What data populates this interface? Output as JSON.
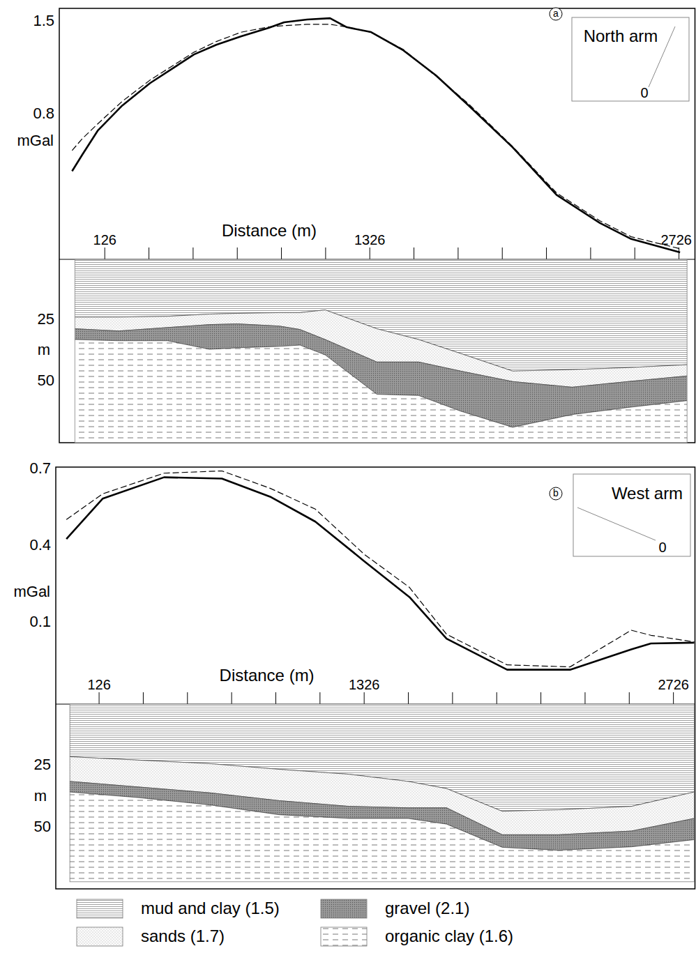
{
  "chart_data": [
    {
      "type": "line",
      "panel": "a",
      "title": "North arm",
      "annotations": [
        "0"
      ],
      "xlabel": "Distance (m)",
      "ylabel": "mGal",
      "x": [
        -22,
        25,
        94,
        205,
        331,
        530,
        631,
        742,
        868,
        938,
        1042,
        1146,
        1222,
        1332,
        1478,
        1626,
        1774,
        1973,
        2172,
        2368,
        2510,
        2731
      ],
      "series": [
        {
          "color": "#000000",
          "line_style": "solid",
          "values": [
            0.374,
            0.5,
            0.679,
            0.868,
            1.037,
            1.253,
            1.326,
            1.389,
            1.453,
            1.495,
            1.516,
            1.526,
            1.458,
            1.421,
            1.284,
            1.095,
            0.868,
            0.553,
            0.195,
            -0.016,
            -0.137,
            -0.237
          ]
        },
        {
          "color": "#000000",
          "line_style": "dashed",
          "values": [
            0.53,
            0.62,
            0.73,
            0.9,
            1.06,
            1.27,
            1.35,
            1.42,
            1.46,
            1.47,
            1.48,
            1.48,
            1.46,
            1.42,
            1.29,
            1.09,
            0.88,
            0.56,
            0.21,
            0.0,
            -0.12,
            -0.21
          ]
        }
      ],
      "xlim": [
        -80,
        2800
      ],
      "ylim": [
        -0.29,
        1.6
      ],
      "xticks": [
        126,
        {
          "value": 326,
          "label": null
        },
        {
          "value": 526,
          "label": null
        },
        {
          "value": 726,
          "label": null
        },
        {
          "value": 926,
          "label": null
        },
        {
          "value": 1126,
          "label": null
        },
        1326,
        {
          "value": 1526,
          "label": null
        },
        {
          "value": 1726,
          "label": null
        },
        {
          "value": 1926,
          "label": null
        },
        {
          "value": 2126,
          "label": null
        },
        {
          "value": 2326,
          "label": null
        },
        {
          "value": 2526,
          "label": null
        },
        2726
      ],
      "yticks": [
        0.8,
        1.5
      ]
    },
    {
      "type": "section",
      "stacked": true,
      "legend": "bottom",
      "ylabel": "m",
      "x": [
        -10,
        189,
        410,
        600,
        726,
        916,
        1010,
        1124,
        1358,
        1547,
        1737,
        1973,
        2242,
        2495,
        2763
      ],
      "series": [
        {
          "name": "mud and clay (1.5)",
          "color": "#8a8a8a",
          "line_style": "solid",
          "values": [
            23.6,
            23.6,
            23.3,
            22.4,
            22.1,
            21.8,
            21.8,
            20.7,
            28.4,
            32.8,
            38.5,
            45.7,
            45.1,
            44.3,
            43.1
          ]
        },
        {
          "name": "sands (1.7)",
          "color": "#a8a8a8",
          "line_style": "dotted",
          "values": [
            4.8,
            5.7,
            4.6,
            4.3,
            4.3,
            5.5,
            6.9,
            12.1,
            13.6,
            9.2,
            7.2,
            4.3,
            7.2,
            5.7,
            4.6
          ]
        },
        {
          "name": "gravel (2.1)",
          "color": "#9a9a9a",
          "line_style": "fill",
          "values": [
            4.4,
            4.0,
            5.4,
            10.1,
            9.8,
            8.3,
            6.4,
            6.3,
            13.2,
            13.7,
            16.4,
            18.7,
            11.2,
            10.6,
            10.1
          ]
        },
        {
          "name": "organic clay (1.6)",
          "color": "#555555",
          "line_style": "dashed",
          "values": [
            42.2,
            41.7,
            41.7,
            38.2,
            38.8,
            39.4,
            39.9,
            35.9,
            19.8,
            19.3,
            12.9,
            6.3,
            11.5,
            14.4,
            17.2
          ]
        }
      ],
      "xlim": [
        -10,
        2763
      ],
      "ylim": [
        0,
        75
      ],
      "yticks": [
        25,
        50
      ]
    },
    {
      "type": "line",
      "panel": "b",
      "title": "West arm",
      "annotations": [
        "0"
      ],
      "xlabel": "Distance (m)",
      "ylabel": "mGal",
      "x": [
        -22,
        142,
        420,
        682,
        900,
        1105,
        1326,
        1531,
        1699,
        1973,
        2258,
        2535,
        2624,
        2820
      ],
      "series": [
        {
          "color": "#000000",
          "line_style": "solid",
          "values": [
            0.428,
            0.586,
            0.67,
            0.665,
            0.594,
            0.496,
            0.341,
            0.2,
            0.037,
            -0.085,
            -0.085,
            -0.005,
            0.018,
            0.021
          ]
        },
        {
          "color": "#000000",
          "line_style": "dashed",
          "values": [
            0.504,
            0.605,
            0.686,
            0.695,
            0.627,
            0.545,
            0.368,
            0.238,
            0.054,
            -0.066,
            -0.074,
            0.07,
            0.05,
            0.024
          ]
        }
      ],
      "xlim": [
        -70,
        2825
      ],
      "ylim": [
        -0.22,
        0.71
      ],
      "xticks": [
        126,
        {
          "value": 326,
          "label": null
        },
        {
          "value": 526,
          "label": null
        },
        {
          "value": 726,
          "label": null
        },
        {
          "value": 926,
          "label": null
        },
        {
          "value": 1126,
          "label": null
        },
        1326,
        {
          "value": 1526,
          "label": null
        },
        {
          "value": 1726,
          "label": null
        },
        {
          "value": 1926,
          "label": null
        },
        {
          "value": 2126,
          "label": null
        },
        {
          "value": 2326,
          "label": null
        },
        {
          "value": 2526,
          "label": null
        },
        2726
      ],
      "yticks": [
        0.1,
        0.4,
        0.7
      ]
    },
    {
      "type": "section",
      "stacked": true,
      "ylabel": "m",
      "x": [
        -7,
        309,
        625,
        941,
        1257,
        1525,
        1699,
        1951,
        2204,
        2536,
        2820
      ],
      "series": [
        {
          "color": "#8a8a8a",
          "line_style": "solid",
          "values": [
            21.3,
            22.7,
            24.1,
            26.4,
            28.4,
            31.3,
            34.2,
            43.4,
            42.8,
            41.4,
            35.6
          ]
        },
        {
          "color": "#a8a8a8",
          "line_style": "dotted",
          "values": [
            10.0,
            10.9,
            11.8,
            12.7,
            13.0,
            10.7,
            7.8,
            9.5,
            10.1,
            10.0,
            10.7
          ]
        },
        {
          "color": "#9a9a9a",
          "line_style": "fill",
          "values": [
            4.3,
            4.3,
            4.9,
            5.7,
            4.9,
            4.3,
            6.6,
            5.1,
            6.3,
            6.4,
            8.6
          ]
        },
        {
          "color": "#555555",
          "line_style": "dashed",
          "values": [
            36.4,
            34.1,
            31.2,
            27.2,
            25.7,
            25.7,
            23.4,
            14.0,
            12.8,
            14.2,
            17.1
          ]
        }
      ],
      "xlim": [
        -7,
        2820
      ],
      "ylim": [
        0,
        72
      ],
      "yticks": [
        25,
        50
      ]
    }
  ]
}
